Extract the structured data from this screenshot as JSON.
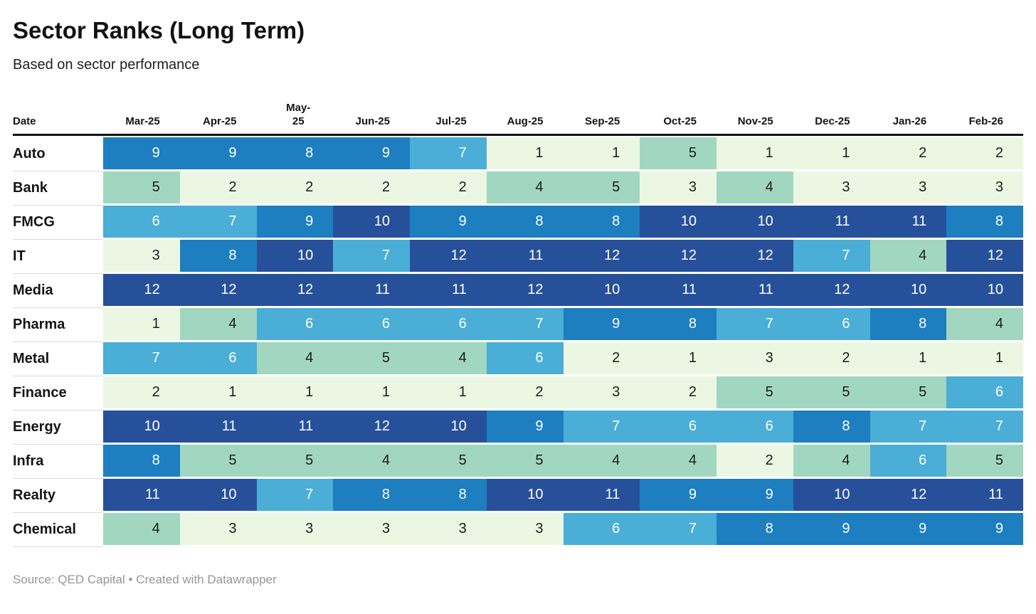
{
  "header": {
    "title": "Sector Ranks (Long Term)",
    "subtitle": "Based on sector performance"
  },
  "table": {
    "date_column_label": "Date",
    "wrap_column_index": 2
  },
  "chart_data": {
    "type": "heatmap",
    "title": "Sector Ranks (Long Term)",
    "subtitle": "Based on sector performance",
    "x_label": "Date",
    "categories": [
      "Mar-25",
      "Apr-25",
      "May-25",
      "Jun-25",
      "Jul-25",
      "Aug-25",
      "Sep-25",
      "Oct-25",
      "Nov-25",
      "Dec-25",
      "Jan-26",
      "Feb-26"
    ],
    "series": [
      {
        "name": "Auto",
        "values": [
          9,
          9,
          8,
          9,
          7,
          1,
          1,
          5,
          1,
          1,
          2,
          2
        ]
      },
      {
        "name": "Bank",
        "values": [
          5,
          2,
          2,
          2,
          2,
          4,
          5,
          3,
          4,
          3,
          3,
          3
        ]
      },
      {
        "name": "FMCG",
        "values": [
          6,
          7,
          9,
          10,
          9,
          8,
          8,
          10,
          10,
          11,
          11,
          8
        ]
      },
      {
        "name": "IT",
        "values": [
          3,
          8,
          10,
          7,
          12,
          11,
          12,
          12,
          12,
          7,
          4,
          12
        ]
      },
      {
        "name": "Media",
        "values": [
          12,
          12,
          12,
          11,
          11,
          12,
          10,
          11,
          11,
          12,
          10,
          10
        ]
      },
      {
        "name": "Pharma",
        "values": [
          1,
          4,
          6,
          6,
          6,
          7,
          9,
          8,
          7,
          6,
          8,
          4
        ]
      },
      {
        "name": "Metal",
        "values": [
          7,
          6,
          4,
          5,
          4,
          6,
          2,
          1,
          3,
          2,
          1,
          1
        ]
      },
      {
        "name": "Finance",
        "values": [
          2,
          1,
          1,
          1,
          1,
          2,
          3,
          2,
          5,
          5,
          5,
          6
        ]
      },
      {
        "name": "Energy",
        "values": [
          10,
          11,
          11,
          12,
          10,
          9,
          7,
          6,
          6,
          8,
          7,
          7
        ]
      },
      {
        "name": "Infra",
        "values": [
          8,
          5,
          5,
          4,
          5,
          5,
          4,
          4,
          2,
          4,
          6,
          5
        ]
      },
      {
        "name": "Realty",
        "values": [
          11,
          10,
          7,
          8,
          8,
          10,
          11,
          9,
          9,
          10,
          12,
          11
        ]
      },
      {
        "name": "Chemical",
        "values": [
          4,
          3,
          3,
          3,
          3,
          3,
          6,
          7,
          8,
          9,
          9,
          9
        ]
      }
    ],
    "value_domain": [
      1,
      12
    ],
    "color_buckets": [
      {
        "range": [
          1,
          3
        ],
        "bg": "#ebf7e3",
        "text": "#1b1b1b"
      },
      {
        "range": [
          4,
          5
        ],
        "bg": "#a1d7c0",
        "text": "#1b1b1b"
      },
      {
        "range": [
          6,
          7
        ],
        "bg": "#4aaed6",
        "text": "#ffffff"
      },
      {
        "range": [
          8,
          9
        ],
        "bg": "#1d7ec0",
        "text": "#ffffff"
      },
      {
        "range": [
          10,
          12
        ],
        "bg": "#27509b",
        "text": "#ffffff"
      }
    ],
    "legend_position": "none",
    "grid": false
  },
  "footer": {
    "source_text": "Source: QED Capital • Created with Datawrapper"
  }
}
